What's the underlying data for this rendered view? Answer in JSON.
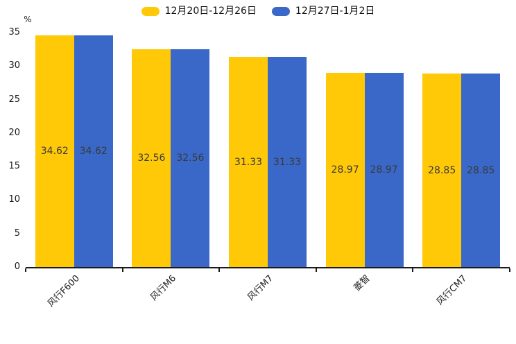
{
  "chart_data": {
    "type": "bar",
    "title": "",
    "y_unit": "%",
    "categories": [
      "风行F600",
      "风行M6",
      "风行M7",
      "菱智",
      "风行CM7"
    ],
    "series": [
      {
        "name": "12月20日-12月26日",
        "color": "#FFC907",
        "values": [
          34.62,
          32.56,
          31.33,
          28.97,
          28.85
        ]
      },
      {
        "name": "12月27日-1月2日",
        "color": "#3A68C8",
        "values": [
          34.62,
          32.56,
          31.33,
          28.97,
          28.85
        ]
      }
    ],
    "ylim": [
      0,
      35
    ],
    "ytick_step": 5,
    "grid": false,
    "legend_position": "top",
    "bar_label_position": "center",
    "bar_label_format": "2-decimals",
    "axis_color": "#1a1a1a"
  }
}
